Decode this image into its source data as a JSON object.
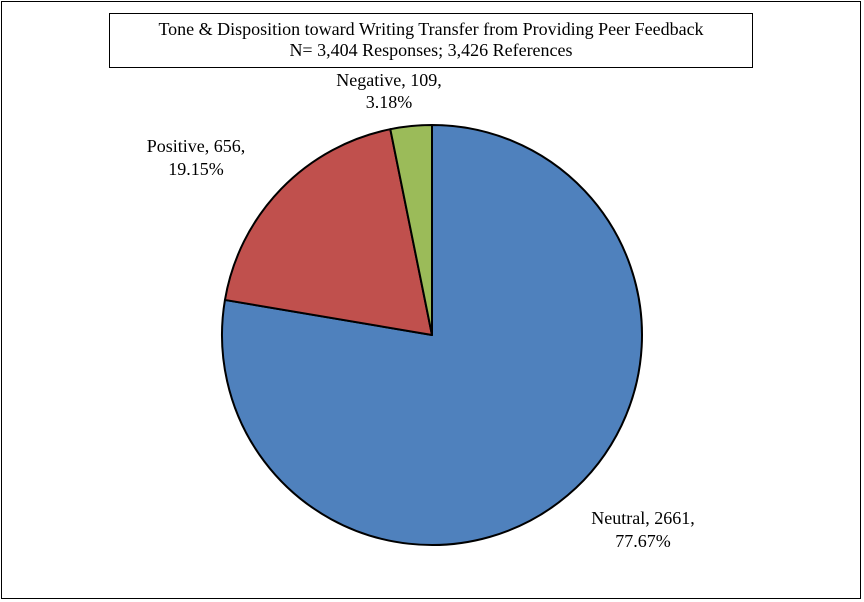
{
  "chart_data": {
    "type": "pie",
    "title": "Tone & Disposition toward Writing Transfer from Providing Peer Feedback",
    "subtitle": "N= 3,404 Responses; 3,426 References",
    "slices": [
      {
        "name": "Neutral",
        "value": 2661,
        "percent_label": "77.67%",
        "label_line1": "Neutral, 2661,",
        "label_line2": "77.67%",
        "color": "#4F81BD"
      },
      {
        "name": "Positive",
        "value": 656,
        "percent_label": "19.15%",
        "label_line1": "Positive, 656,",
        "label_line2": "19.15%",
        "color": "#C0504D"
      },
      {
        "name": "Negative",
        "value": 109,
        "percent_label": "3.18%",
        "label_line1": "Negative, 109,",
        "label_line2": "3.18%",
        "color": "#9BBB59"
      }
    ],
    "start_angle_deg": 0,
    "direction": "clockwise",
    "legend": "none",
    "data_labels": "outside"
  }
}
